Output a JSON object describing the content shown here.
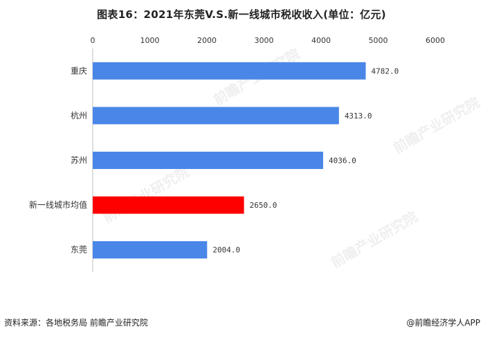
{
  "title": "图表16：2021年东莞V.S.新一线城市税收收入(单位：亿元)",
  "footer": {
    "source": "资料来源：各地税务局 前瞻产业研究院",
    "credit": "@前瞻经济学人APP"
  },
  "watermark": "前瞻产业研究院",
  "chart_data": {
    "type": "bar",
    "orientation": "horizontal",
    "categories": [
      "重庆",
      "杭州",
      "苏州",
      "新一线城市均值",
      "东莞"
    ],
    "values": [
      4782.0,
      4313.0,
      4036.0,
      2650.0,
      2004.0
    ],
    "value_labels": [
      "4782.0",
      "4313.0",
      "4036.0",
      "2650.0",
      "2004.0"
    ],
    "colors": [
      "#4a86e8",
      "#4a86e8",
      "#4a86e8",
      "#ff0000",
      "#4a86e8"
    ],
    "xticks": [
      "0",
      "1000",
      "2000",
      "3000",
      "4000",
      "5000",
      "6000"
    ],
    "xlim": [
      0,
      6000
    ],
    "axis_position": "top",
    "grid": false
  }
}
